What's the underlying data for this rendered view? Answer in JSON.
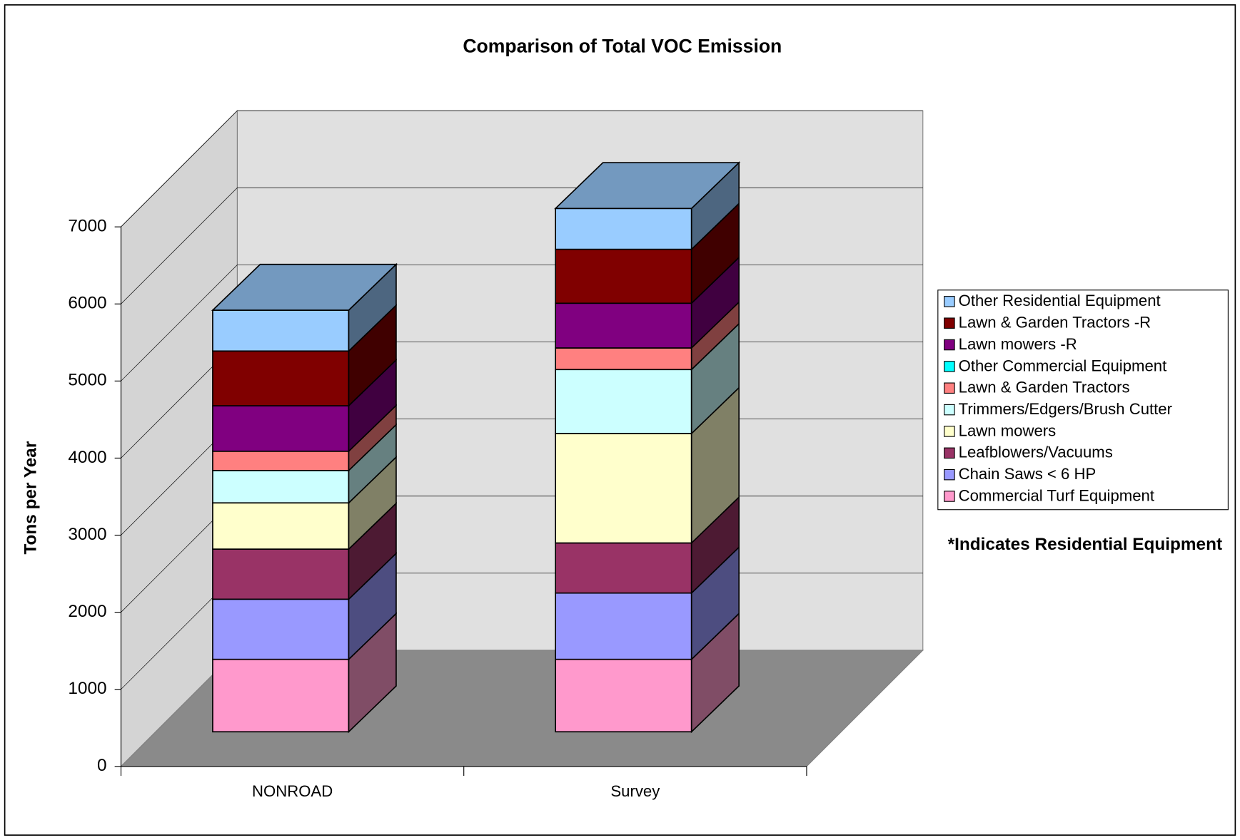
{
  "chart_data": {
    "type": "bar3d_stacked",
    "title": "Comparison of Total VOC Emission",
    "y_label": "Tons per Year",
    "annotation": "*Indicates Residential Equipment",
    "categories": [
      "NONROAD",
      "Survey"
    ],
    "series": [
      {
        "name": "Commercial Turf Equipment",
        "color": "#ff99cc",
        "values": [
          940,
          940
        ]
      },
      {
        "name": "Chain Saws < 6 HP",
        "color": "#9999ff",
        "values": [
          780,
          860
        ]
      },
      {
        "name": "Leafblowers/Vacuums",
        "color": "#993366",
        "values": [
          650,
          650
        ]
      },
      {
        "name": "Lawn mowers",
        "color": "#ffffcc",
        "values": [
          600,
          1420
        ]
      },
      {
        "name": "Trimmers/Edgers/Brush Cutter",
        "color": "#ccffff",
        "values": [
          420,
          830
        ]
      },
      {
        "name": "Lawn & Garden Tractors",
        "color": "#ff8080",
        "values": [
          250,
          280
        ]
      },
      {
        "name": "Other Commercial Equipment",
        "color": "#00ffff",
        "values": [
          0,
          0
        ]
      },
      {
        "name": "Lawn mowers -R",
        "color": "#800080",
        "values": [
          590,
          580
        ]
      },
      {
        "name": "Lawn & Garden Tractors -R",
        "color": "#800000",
        "values": [
          710,
          700
        ]
      },
      {
        "name": "Other Residential Equipment",
        "color": "#99ccff",
        "values": [
          530,
          530
        ]
      }
    ],
    "ylim": [
      0,
      7000
    ],
    "yticks": [
      0,
      1000,
      2000,
      3000,
      4000,
      5000,
      6000,
      7000
    ],
    "grid": true,
    "legend": "right"
  }
}
